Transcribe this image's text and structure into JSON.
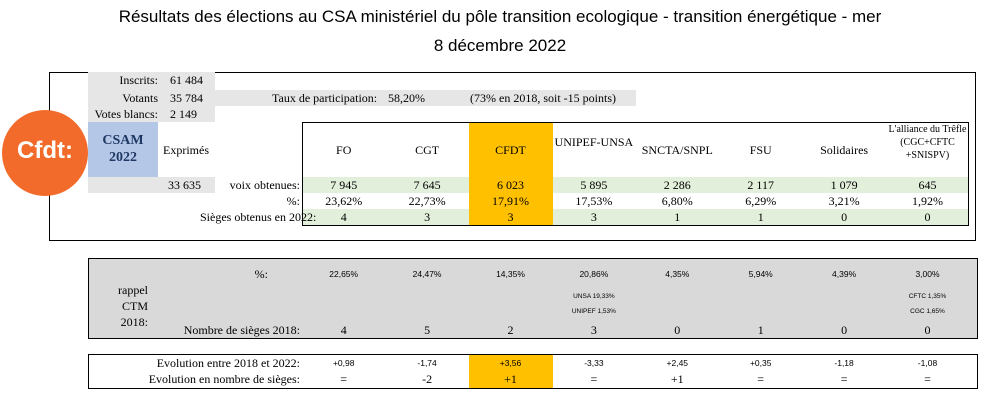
{
  "title_lines": [
    "Résultats des élections au CSA ministériel du pôle transition ecologique - transition énergétique - mer",
    "8 décembre 2022"
  ],
  "logo": "Cfdt:",
  "summary": [
    [
      "Inscrits:",
      "61 484"
    ],
    [
      "Votants",
      "35 784"
    ],
    [
      "Votes blancs:",
      "2 149"
    ]
  ],
  "participation": {
    "label": "Taux de participation:",
    "value": "58,20%",
    "note": "(73% en 2018, soit -15 points)"
  },
  "csam": "CSAM 2022",
  "exprimes": {
    "label": "Exprimés",
    "value": "33 635"
  },
  "unions": [
    "FO",
    "CGT",
    "CFDT",
    "UNIPEF-UNSA",
    "SNCTA/SNPL",
    "FSU",
    "Solidaires",
    "L'alliance du Trêfle (CGC+CFTC +SNISPV)"
  ],
  "results_2022": [
    {
      "label": "voix obtenues:",
      "values": [
        "7 945",
        "7 645",
        "6 023",
        "5 895",
        "2 286",
        "2 117",
        "1 079",
        "645"
      ]
    },
    {
      "label": "%:",
      "values": [
        "23,62%",
        "22,73%",
        "17,91%",
        "17,53%",
        "6,80%",
        "6,29%",
        "3,21%",
        "1,92%"
      ]
    },
    {
      "label": "Sièges obtenus en 2022:",
      "values": [
        "4",
        "3",
        "3",
        "3",
        "1",
        "1",
        "0",
        "0"
      ]
    }
  ],
  "rappel_2018": {
    "label": "rappel CTM 2018:",
    "pct_label": "%:",
    "pct": [
      "22,65%",
      "24,47%",
      "14,35%",
      "20,86%",
      "4,35%",
      "5,94%",
      "4,39%",
      "3,00%"
    ],
    "details": [
      [],
      [],
      [],
      [
        "UNSA 19,33%",
        "UNIPEF 1,53%"
      ],
      [],
      [],
      [],
      [
        "CFTC 1,35%",
        "CGC 1,65%"
      ]
    ],
    "seats_label": "Nombre de sièges 2018:",
    "seats": [
      "4",
      "5",
      "2",
      "3",
      "0",
      "1",
      "0",
      "0"
    ]
  },
  "evolution": [
    {
      "label": "Evolution entre 2018 et 2022:",
      "values": [
        "+0,98",
        "-1,74",
        "+3,56",
        "-3,33",
        "+2,45",
        "+0,35",
        "-1,18",
        "-1,08"
      ]
    },
    {
      "label": "Evolution en nombre de sièges:",
      "values": [
        "=",
        "-2",
        "+1",
        "=",
        "+1",
        "=",
        "=",
        "="
      ]
    }
  ]
}
